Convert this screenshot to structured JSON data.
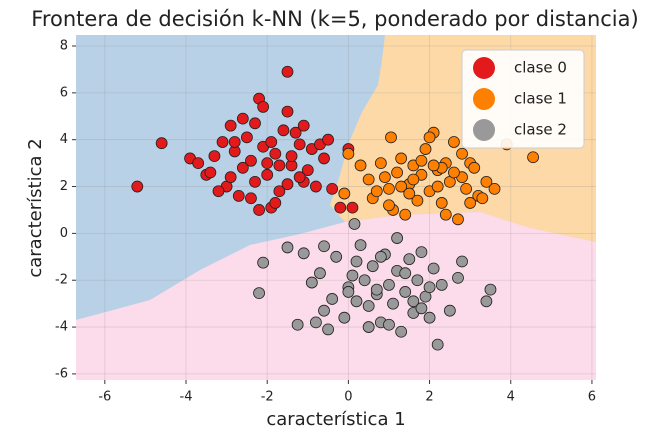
{
  "chart_data": {
    "type": "scatter",
    "title": "Frontera de decisión k-NN (k=5, ponderado por distancia)",
    "x_label": "característica 1",
    "y_label": "característica 2",
    "xlim": [
      -6.71,
      6.1
    ],
    "ylim": [
      -6.26,
      8.47
    ],
    "xticks": [
      -6,
      -4,
      -2,
      0,
      2,
      4,
      6
    ],
    "yticks": [
      -6,
      -4,
      -2,
      0,
      2,
      4,
      6,
      8
    ],
    "grid": true,
    "legend": "upper right",
    "series": [
      {
        "name": "clase 0",
        "color": "#e31a1c",
        "x": [
          -5.2,
          -4.6,
          -1.5,
          -2.2,
          -3.9,
          -3.7,
          -3.5,
          -3.3,
          -3.1,
          -3.0,
          -2.9,
          -2.8,
          -2.7,
          -2.6,
          -2.5,
          -2.4,
          -2.3,
          -2.2,
          -2.1,
          -2.0,
          -1.9,
          -1.8,
          -1.7,
          -1.6,
          -1.5,
          -1.4,
          -1.3,
          -1.2,
          -1.1,
          -1.0,
          -0.9,
          -0.8,
          -0.6,
          -0.4,
          -0.2,
          0.1,
          -3.2,
          -2.9,
          -2.6,
          -2.3,
          -2.0,
          -1.7,
          -1.4,
          -1.1,
          -0.7,
          -2.8,
          -2.4,
          -1.9,
          -1.5,
          -3.4,
          -2.1,
          -1.8,
          -1.2,
          -0.5,
          0.0
        ],
        "y": [
          2.0,
          3.85,
          6.9,
          5.75,
          3.2,
          3.0,
          2.5,
          3.3,
          3.9,
          2.0,
          4.6,
          3.5,
          1.6,
          2.8,
          4.1,
          3.1,
          2.2,
          1.0,
          3.7,
          2.5,
          1.1,
          3.4,
          1.8,
          4.4,
          5.2,
          2.9,
          4.3,
          3.8,
          2.2,
          2.7,
          3.6,
          2.0,
          3.2,
          1.9,
          1.1,
          1.1,
          1.8,
          2.4,
          4.9,
          4.7,
          3.0,
          2.9,
          3.3,
          4.6,
          3.8,
          3.9,
          1.5,
          3.9,
          2.1,
          2.6,
          5.4,
          1.3,
          2.4,
          4.0,
          3.6
        ]
      },
      {
        "name": "clase 1",
        "color": "#ff7f00",
        "x": [
          4.55,
          3.9,
          1.05,
          0.0,
          -0.1,
          0.3,
          0.5,
          0.6,
          0.8,
          0.9,
          1.0,
          1.1,
          1.2,
          1.3,
          1.4,
          1.5,
          1.6,
          1.7,
          1.8,
          1.9,
          2.0,
          2.1,
          2.2,
          2.3,
          2.4,
          2.5,
          2.6,
          2.7,
          2.8,
          2.9,
          3.0,
          3.1,
          3.2,
          3.4,
          3.6,
          0.7,
          1.3,
          1.8,
          2.2,
          2.6,
          3.0,
          1.5,
          2.0,
          2.4,
          2.8,
          1.0,
          1.6,
          2.3,
          3.3,
          2.1
        ],
        "y": [
          3.25,
          3.8,
          4.1,
          3.4,
          1.7,
          2.9,
          2.3,
          1.5,
          3.0,
          2.4,
          1.9,
          1.0,
          2.6,
          3.2,
          0.8,
          2.1,
          2.9,
          1.4,
          2.5,
          3.6,
          1.8,
          4.3,
          2.7,
          1.3,
          3.0,
          2.2,
          3.9,
          0.6,
          2.4,
          1.9,
          3.0,
          2.8,
          1.6,
          2.2,
          1.9,
          1.8,
          2.0,
          3.1,
          2.0,
          2.6,
          1.3,
          1.7,
          4.1,
          0.8,
          3.4,
          1.2,
          2.3,
          2.8,
          1.5,
          2.9
        ]
      },
      {
        "name": "clase 2",
        "color": "#999999",
        "x": [
          -2.2,
          -2.1,
          -1.5,
          -1.25,
          2.2,
          3.5,
          3.4,
          0.15,
          -0.6,
          -1.1,
          -0.9,
          -0.7,
          -0.6,
          -0.4,
          -0.3,
          -0.1,
          0.0,
          0.1,
          0.2,
          0.3,
          0.4,
          0.5,
          0.6,
          0.7,
          0.8,
          0.9,
          1.0,
          1.1,
          1.2,
          1.3,
          1.4,
          1.5,
          1.6,
          1.7,
          1.8,
          1.9,
          2.0,
          2.1,
          2.3,
          2.5,
          2.7,
          2.8,
          -0.5,
          0.2,
          0.8,
          1.2,
          1.6,
          2.0,
          0.5,
          1.0,
          1.4,
          0.0,
          1.8,
          -0.8,
          0.7
        ],
        "y": [
          -2.55,
          -1.25,
          -0.6,
          -3.9,
          -4.75,
          -2.4,
          -2.9,
          0.4,
          -0.55,
          -0.85,
          -2.1,
          -1.7,
          -3.3,
          -2.8,
          -1.0,
          -3.6,
          -2.3,
          -1.8,
          -2.9,
          -0.5,
          -2.0,
          -3.1,
          -1.4,
          -2.6,
          -3.8,
          -0.9,
          -2.2,
          -3.0,
          -1.6,
          -4.2,
          -2.5,
          -1.1,
          -3.4,
          -2.0,
          -0.8,
          -2.7,
          -3.6,
          -1.5,
          -2.2,
          -3.3,
          -1.9,
          -1.2,
          -4.1,
          -1.2,
          -1.0,
          -0.2,
          -2.9,
          -2.3,
          -4.0,
          -3.9,
          -1.7,
          -2.5,
          -3.2,
          -3.8,
          -2.4
        ]
      }
    ]
  }
}
